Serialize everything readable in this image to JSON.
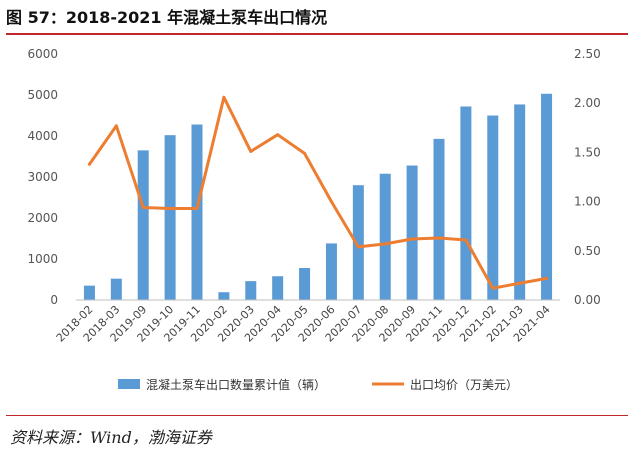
{
  "figure": {
    "title": "图 57：2018-2021 年混凝土泵车出口情况",
    "source": "资料来源：Wind，渤海证券"
  },
  "colors": {
    "bar": "#5b9bd5",
    "line": "#ed7d31",
    "rule": "#c0282d"
  },
  "chart_data": {
    "type": "bar+line",
    "categories": [
      "2018-02",
      "2018-03",
      "2019-09",
      "2019-10",
      "2019-11",
      "2020-02",
      "2020-03",
      "2020-04",
      "2020-05",
      "2020-06",
      "2020-07",
      "2020-08",
      "2020-09",
      "2020-11",
      "2020-12",
      "2021-02",
      "2021-03",
      "2021-04"
    ],
    "series": [
      {
        "name": "混凝土泵车出口数量累计值（辆）",
        "type": "bar",
        "axis": "left",
        "values": [
          350,
          520,
          3650,
          4020,
          4280,
          190,
          460,
          580,
          780,
          1380,
          2800,
          3080,
          3280,
          3930,
          4720,
          4500,
          4770,
          5030
        ]
      },
      {
        "name": "出口均价（万美元）",
        "type": "line",
        "axis": "right",
        "values": [
          1.38,
          1.77,
          0.94,
          0.93,
          0.93,
          2.06,
          1.51,
          1.68,
          1.49,
          1.0,
          0.54,
          0.57,
          0.62,
          0.63,
          0.61,
          0.12,
          0.17,
          0.22
        ]
      }
    ],
    "y_left": {
      "min": 0,
      "max": 6000,
      "ticks": [
        "0",
        "1000",
        "2000",
        "3000",
        "4000",
        "5000",
        "6000"
      ]
    },
    "y_right": {
      "min": 0,
      "max": 2.5,
      "ticks": [
        "0.00",
        "0.50",
        "1.00",
        "1.50",
        "2.00",
        "2.50"
      ]
    },
    "legend_position": "bottom",
    "grid": false
  }
}
